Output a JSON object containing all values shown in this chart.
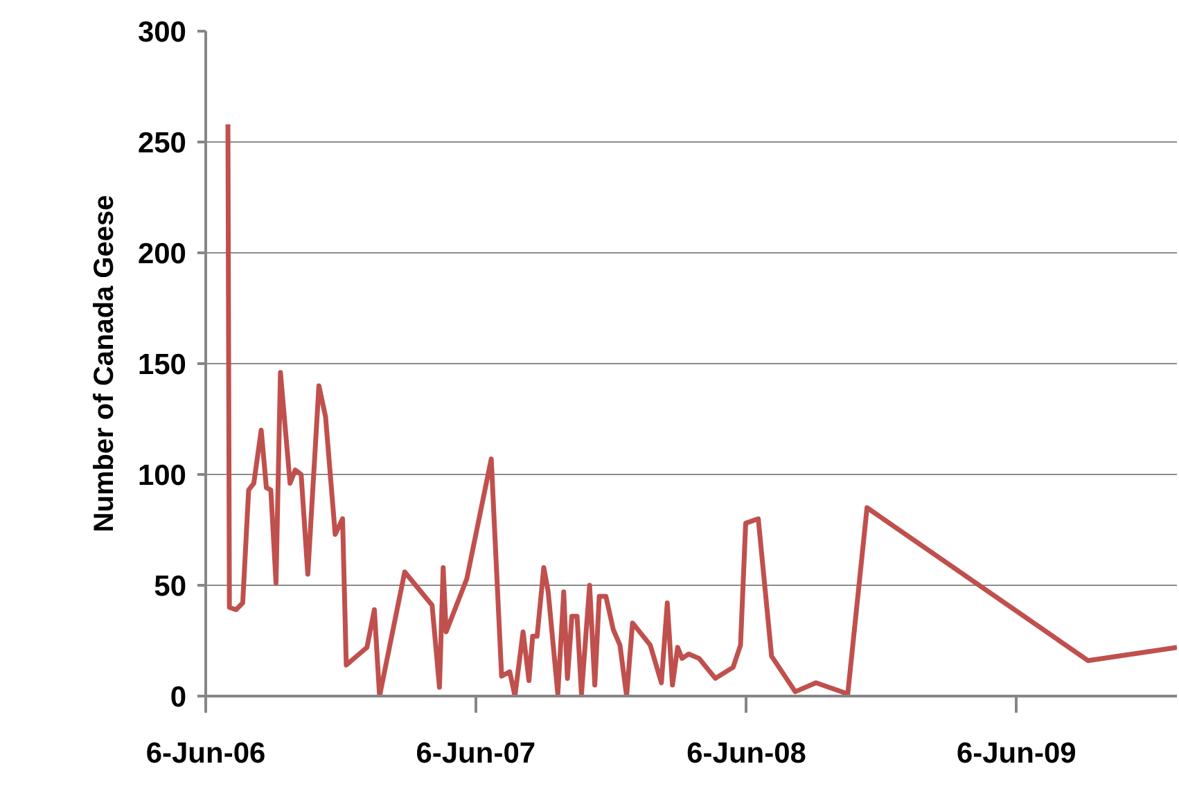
{
  "chart_data": {
    "type": "line",
    "ylabel": "Number of Canada Geese",
    "x": [
      "2006-07-06",
      "2006-07-08",
      "2006-07-17",
      "2006-07-26",
      "2006-08-03",
      "2006-08-10",
      "2006-08-20",
      "2006-08-27",
      "2006-09-02",
      "2006-09-09",
      "2006-09-15",
      "2006-09-28",
      "2006-10-05",
      "2006-10-13",
      "2006-10-22",
      "2006-11-06",
      "2006-11-15",
      "2006-11-28",
      "2006-12-08",
      "2006-12-13",
      "2007-01-10",
      "2007-01-20",
      "2007-01-27",
      "2007-03-02",
      "2007-04-08",
      "2007-04-18",
      "2007-04-23",
      "2007-04-27",
      "2007-05-25",
      "2007-06-27",
      "2007-07-11",
      "2007-07-22",
      "2007-07-29",
      "2007-08-09",
      "2007-08-17",
      "2007-08-22",
      "2007-08-28",
      "2007-09-06",
      "2007-09-12",
      "2007-09-25",
      "2007-10-03",
      "2007-10-08",
      "2007-10-14",
      "2007-10-21",
      "2007-10-27",
      "2007-11-07",
      "2007-11-14",
      "2007-11-20",
      "2007-11-29",
      "2007-12-09",
      "2007-12-18",
      "2007-12-27",
      "2008-01-04",
      "2008-01-28",
      "2008-02-12",
      "2008-02-20",
      "2008-02-27",
      "2008-03-05",
      "2008-03-11",
      "2008-03-20",
      "2008-04-03",
      "2008-04-25",
      "2008-05-19",
      "2008-05-29",
      "2008-06-05",
      "2008-06-22",
      "2008-07-10",
      "2008-08-11",
      "2008-09-08",
      "2008-10-21",
      "2008-11-16",
      "2009-09-11",
      "2010-01-09"
    ],
    "series": [
      {
        "color": "#c0504d",
        "values": [
          258,
          40,
          39,
          42,
          93,
          96,
          120,
          94,
          93,
          51,
          146,
          96,
          102,
          100,
          55,
          140,
          126,
          73,
          80,
          14,
          22,
          39,
          0,
          56,
          41,
          4,
          58,
          29,
          53,
          107,
          9,
          11,
          0,
          29,
          7,
          27,
          27,
          58,
          47,
          1,
          47,
          8,
          36,
          36,
          1,
          50,
          5,
          45,
          45,
          30,
          23,
          0,
          33,
          23,
          6,
          42,
          5,
          22,
          17,
          19,
          17,
          8,
          13,
          23,
          78,
          80,
          18,
          2,
          6,
          1,
          85,
          16,
          22
        ]
      }
    ],
    "xlim": [
      "2006-06-06",
      "2010-01-09"
    ],
    "xticks": [
      {
        "value": "2006-06-06",
        "label": "6-Jun-06"
      },
      {
        "value": "2007-06-06",
        "label": "6-Jun-07"
      },
      {
        "value": "2008-06-06",
        "label": "6-Jun-08"
      },
      {
        "value": "2009-06-06",
        "label": "6-Jun-09"
      }
    ],
    "ylim": [
      0,
      300
    ],
    "yticks": [
      0,
      50,
      100,
      150,
      200,
      250,
      300
    ],
    "grid": "y",
    "marker": "none",
    "line_style": "solid"
  }
}
